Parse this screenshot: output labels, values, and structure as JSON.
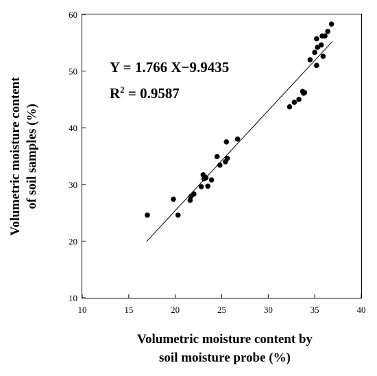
{
  "chart_data": {
    "type": "scatter",
    "title": "",
    "xlabel_lines": [
      "Volumetric moisture content by",
      "soil moisture probe (%)"
    ],
    "ylabel_lines": [
      "Volumetric moisture content",
      "of soil samples (%)"
    ],
    "xlim": [
      10,
      40
    ],
    "ylim": [
      10,
      60
    ],
    "xticks": [
      "10",
      "15",
      "20",
      "25",
      "30",
      "35",
      "40"
    ],
    "yticks": [
      "10",
      "20",
      "30",
      "40",
      "50",
      "60"
    ],
    "grid": false,
    "points": [
      {
        "x": 17.0,
        "y": 24.6
      },
      {
        "x": 19.8,
        "y": 27.4
      },
      {
        "x": 20.3,
        "y": 24.6
      },
      {
        "x": 21.6,
        "y": 27.2
      },
      {
        "x": 21.7,
        "y": 27.9
      },
      {
        "x": 22.0,
        "y": 28.3
      },
      {
        "x": 22.8,
        "y": 29.6
      },
      {
        "x": 23.0,
        "y": 31.7
      },
      {
        "x": 23.1,
        "y": 31.0
      },
      {
        "x": 23.3,
        "y": 31.2
      },
      {
        "x": 23.5,
        "y": 29.7
      },
      {
        "x": 23.9,
        "y": 30.8
      },
      {
        "x": 24.5,
        "y": 34.9
      },
      {
        "x": 24.8,
        "y": 33.4
      },
      {
        "x": 25.4,
        "y": 34.0
      },
      {
        "x": 25.5,
        "y": 37.5
      },
      {
        "x": 25.6,
        "y": 34.6
      },
      {
        "x": 26.7,
        "y": 38.0
      },
      {
        "x": 32.3,
        "y": 43.7
      },
      {
        "x": 32.8,
        "y": 44.5
      },
      {
        "x": 33.3,
        "y": 45.0
      },
      {
        "x": 33.7,
        "y": 46.4
      },
      {
        "x": 33.8,
        "y": 46.1
      },
      {
        "x": 33.9,
        "y": 46.2
      },
      {
        "x": 34.5,
        "y": 52.0
      },
      {
        "x": 35.0,
        "y": 53.3
      },
      {
        "x": 35.2,
        "y": 51.0
      },
      {
        "x": 35.2,
        "y": 55.7
      },
      {
        "x": 35.3,
        "y": 54.2
      },
      {
        "x": 35.7,
        "y": 54.6
      },
      {
        "x": 35.8,
        "y": 56.2
      },
      {
        "x": 35.9,
        "y": 52.6
      },
      {
        "x": 36.1,
        "y": 56.2
      },
      {
        "x": 36.4,
        "y": 57.0
      },
      {
        "x": 36.8,
        "y": 58.3
      }
    ],
    "fit_line": {
      "x_start": 16.9,
      "x_end": 36.9,
      "slope": 1.766,
      "intercept": -9.9435
    },
    "equation": "Y = 1.766 X−9.9435",
    "r2_prefix": "R",
    "r2_sup": "2",
    "r2_suffix": " = 0.9587"
  }
}
